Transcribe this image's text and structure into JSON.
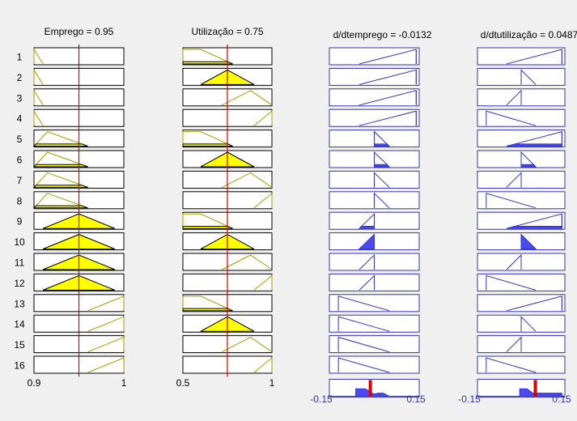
{
  "window": {
    "background": "#f0f0f0"
  },
  "colors": {
    "input_fill": "#ffff00",
    "input_line": "#a0a000",
    "output_fill": "#4a4aee",
    "output_line": "#3333cc",
    "index_line": "#dd0000",
    "box_border": "#000000",
    "output_box_border": "#3333aa"
  },
  "inputs": [
    {
      "title": "Emprego = 0.95",
      "value": 0.95,
      "range": [
        0.9,
        1
      ],
      "min_label": "0.9",
      "max_label": "1",
      "rules": [
        {
          "mf": [
            0.9,
            0.9,
            0.9,
            0.91
          ],
          "activation": 0.0
        },
        {
          "mf": [
            0.9,
            0.9,
            0.9,
            0.91
          ],
          "activation": 0.0
        },
        {
          "mf": [
            0.9,
            0.9,
            0.9,
            0.91
          ],
          "activation": 0.0
        },
        {
          "mf": [
            0.9,
            0.9,
            0.9,
            0.91
          ],
          "activation": 0.0
        },
        {
          "mf": [
            0.9,
            0.915,
            0.915,
            0.96
          ],
          "activation": 0.15
        },
        {
          "mf": [
            0.9,
            0.915,
            0.915,
            0.96
          ],
          "activation": 0.15
        },
        {
          "mf": [
            0.9,
            0.915,
            0.915,
            0.96
          ],
          "activation": 0.15
        },
        {
          "mf": [
            0.9,
            0.915,
            0.915,
            0.96
          ],
          "activation": 0.15
        },
        {
          "mf": [
            0.91,
            0.95,
            0.95,
            0.99
          ],
          "activation": 1.0
        },
        {
          "mf": [
            0.91,
            0.95,
            0.95,
            0.99
          ],
          "activation": 1.0
        },
        {
          "mf": [
            0.91,
            0.95,
            0.95,
            0.99
          ],
          "activation": 1.0
        },
        {
          "mf": [
            0.91,
            0.95,
            0.95,
            0.99
          ],
          "activation": 1.0
        },
        {
          "mf": [
            0.96,
            1.0,
            1.0,
            1.0
          ],
          "activation": 0.0
        },
        {
          "mf": [
            0.96,
            1.0,
            1.0,
            1.0
          ],
          "activation": 0.0
        },
        {
          "mf": [
            0.96,
            1.0,
            1.0,
            1.0
          ],
          "activation": 0.0
        },
        {
          "mf": [
            0.96,
            1.0,
            1.0,
            1.0
          ],
          "activation": 0.0
        }
      ]
    },
    {
      "title": "Utilização = 0.75",
      "value": 0.75,
      "range": [
        0.5,
        1
      ],
      "min_label": "0.5",
      "max_label": "1",
      "rules": [
        {
          "mf": [
            0.5,
            0.5,
            0.6,
            0.78
          ],
          "activation": 0.15
        },
        {
          "mf": [
            0.6,
            0.75,
            0.75,
            0.9
          ],
          "activation": 1.0
        },
        {
          "mf": [
            0.72,
            0.88,
            0.88,
            1.0
          ],
          "activation": 0.0
        },
        {
          "mf": [
            0.9,
            1.0,
            1.0,
            1.0
          ],
          "activation": 0.0
        },
        {
          "mf": [
            0.5,
            0.5,
            0.6,
            0.78
          ],
          "activation": 0.15
        },
        {
          "mf": [
            0.6,
            0.75,
            0.75,
            0.9
          ],
          "activation": 1.0
        },
        {
          "mf": [
            0.72,
            0.88,
            0.88,
            1.0
          ],
          "activation": 0.0
        },
        {
          "mf": [
            0.9,
            1.0,
            1.0,
            1.0
          ],
          "activation": 0.0
        },
        {
          "mf": [
            0.5,
            0.5,
            0.6,
            0.78
          ],
          "activation": 0.15
        },
        {
          "mf": [
            0.6,
            0.75,
            0.75,
            0.9
          ],
          "activation": 1.0
        },
        {
          "mf": [
            0.72,
            0.88,
            0.88,
            1.0
          ],
          "activation": 0.0
        },
        {
          "mf": [
            0.9,
            1.0,
            1.0,
            1.0
          ],
          "activation": 0.0
        },
        {
          "mf": [
            0.5,
            0.5,
            0.6,
            0.78
          ],
          "activation": 0.15
        },
        {
          "mf": [
            0.6,
            0.75,
            0.75,
            0.9
          ],
          "activation": 1.0
        },
        {
          "mf": [
            0.72,
            0.88,
            0.88,
            1.0
          ],
          "activation": 0.0
        },
        {
          "mf": [
            0.9,
            1.0,
            1.0,
            1.0
          ],
          "activation": 0.0
        }
      ]
    }
  ],
  "outputs": [
    {
      "title": "d/dtemprego = -0.0132",
      "value": -0.0132,
      "range": [
        -0.15,
        0.15
      ],
      "min_label": "-0.15",
      "max_label": "0.15",
      "aggregate": [
        [
          -0.15,
          0
        ],
        [
          -0.062,
          0
        ],
        [
          -0.062,
          0.48
        ],
        [
          -0.03,
          0.48
        ],
        [
          -0.003,
          0.15
        ],
        [
          0.01,
          0.15
        ],
        [
          0.01,
          0.2
        ],
        [
          0.03,
          0.2
        ],
        [
          0.05,
          0
        ],
        [
          0.15,
          0
        ]
      ],
      "rules": [
        {
          "mf": [
            -0.05,
            0.14,
            0.14,
            0.14
          ],
          "activation": 0.0,
          "spike": 0.14
        },
        {
          "mf": [
            -0.05,
            0.14,
            0.14,
            0.14
          ],
          "activation": 0.0,
          "spike": 0.14
        },
        {
          "mf": [
            -0.05,
            0.14,
            0.14,
            0.14
          ],
          "activation": 0.0,
          "spike": 0.14
        },
        {
          "mf": [
            -0.05,
            0.14,
            0.14,
            0.14
          ],
          "activation": 0.0,
          "spike": 0.14
        },
        {
          "mf": [
            0.0,
            0.0,
            0.0,
            0.05
          ],
          "activation": 0.15,
          "spike": 0.0
        },
        {
          "mf": [
            0.0,
            0.0,
            0.0,
            0.05
          ],
          "activation": 0.15,
          "spike": 0.0
        },
        {
          "mf": [
            0.0,
            0.0,
            0.0,
            0.05
          ],
          "activation": 0.0,
          "spike": 0.0
        },
        {
          "mf": [
            0.0,
            0.0,
            0.0,
            0.05
          ],
          "activation": 0.0,
          "spike": 0.0
        },
        {
          "mf": [
            -0.05,
            0.0,
            0.0,
            0.0
          ],
          "activation": 0.15,
          "spike": 0.0
        },
        {
          "mf": [
            -0.05,
            0.0,
            0.0,
            0.0
          ],
          "activation": 1.0,
          "spike": 0.0
        },
        {
          "mf": [
            -0.05,
            0.0,
            0.0,
            0.0
          ],
          "activation": 0.0,
          "spike": 0.0
        },
        {
          "mf": [
            -0.05,
            0.0,
            0.0,
            0.0
          ],
          "activation": 0.0,
          "spike": 0.0
        },
        {
          "mf": [
            -0.12,
            -0.12,
            -0.12,
            0.05
          ],
          "activation": 0.0
        },
        {
          "mf": [
            -0.12,
            -0.12,
            -0.12,
            0.05
          ],
          "activation": 0.0
        },
        {
          "mf": [
            -0.12,
            -0.12,
            -0.12,
            0.05
          ],
          "activation": 0.0
        },
        {
          "mf": [
            -0.12,
            -0.12,
            -0.12,
            0.05
          ],
          "activation": 0.0
        }
      ]
    },
    {
      "title": "d/dtutilização = 0.0487",
      "value": 0.0487,
      "range": [
        -0.15,
        0.15
      ],
      "min_label": "-0.15",
      "max_label": "0.15",
      "aggregate": [
        [
          -0.15,
          0
        ],
        [
          -0.005,
          0
        ],
        [
          -0.005,
          0.48
        ],
        [
          0.02,
          0.48
        ],
        [
          0.04,
          0.2
        ],
        [
          0.14,
          0.2
        ],
        [
          0.14,
          0
        ],
        [
          0.15,
          0
        ]
      ],
      "rules": [
        {
          "mf": [
            -0.05,
            0.14,
            0.14,
            0.14
          ],
          "activation": 0.0,
          "spike": 0.14
        },
        {
          "mf": [
            0.0,
            0.0,
            0.0,
            0.05
          ],
          "activation": 0.0,
          "spike": 0.0
        },
        {
          "mf": [
            -0.05,
            0.0,
            0.0,
            0.0
          ],
          "activation": 0.0,
          "spike": 0.0
        },
        {
          "mf": [
            -0.12,
            -0.12,
            -0.12,
            0.05
          ],
          "activation": 0.0
        },
        {
          "mf": [
            -0.05,
            0.14,
            0.14,
            0.14
          ],
          "activation": 0.15,
          "spike": 0.14
        },
        {
          "mf": [
            0.0,
            0.0,
            0.0,
            0.05
          ],
          "activation": 0.15,
          "spike": 0.0
        },
        {
          "mf": [
            -0.05,
            0.0,
            0.0,
            0.0
          ],
          "activation": 0.0,
          "spike": 0.0
        },
        {
          "mf": [
            -0.12,
            -0.12,
            -0.12,
            0.05
          ],
          "activation": 0.0
        },
        {
          "mf": [
            -0.05,
            0.14,
            0.14,
            0.14
          ],
          "activation": 0.15,
          "spike": 0.14
        },
        {
          "mf": [
            0.0,
            0.0,
            0.0,
            0.05
          ],
          "activation": 1.0,
          "spike": 0.0
        },
        {
          "mf": [
            -0.05,
            0.0,
            0.0,
            0.0
          ],
          "activation": 0.0,
          "spike": 0.0
        },
        {
          "mf": [
            -0.12,
            -0.12,
            -0.12,
            0.05
          ],
          "activation": 0.0
        },
        {
          "mf": [
            -0.05,
            0.14,
            0.14,
            0.14
          ],
          "activation": 0.0,
          "spike": 0.14
        },
        {
          "mf": [
            0.0,
            0.0,
            0.0,
            0.05
          ],
          "activation": 0.0,
          "spike": 0.0
        },
        {
          "mf": [
            -0.05,
            0.0,
            0.0,
            0.0
          ],
          "activation": 0.0,
          "spike": 0.0
        },
        {
          "mf": [
            -0.12,
            -0.12,
            -0.12,
            0.05
          ],
          "activation": 0.0
        }
      ]
    }
  ],
  "rule_labels": [
    "1",
    "2",
    "3",
    "4",
    "5",
    "6",
    "7",
    "8",
    "9",
    "10",
    "11",
    "12",
    "13",
    "14",
    "15",
    "16"
  ]
}
